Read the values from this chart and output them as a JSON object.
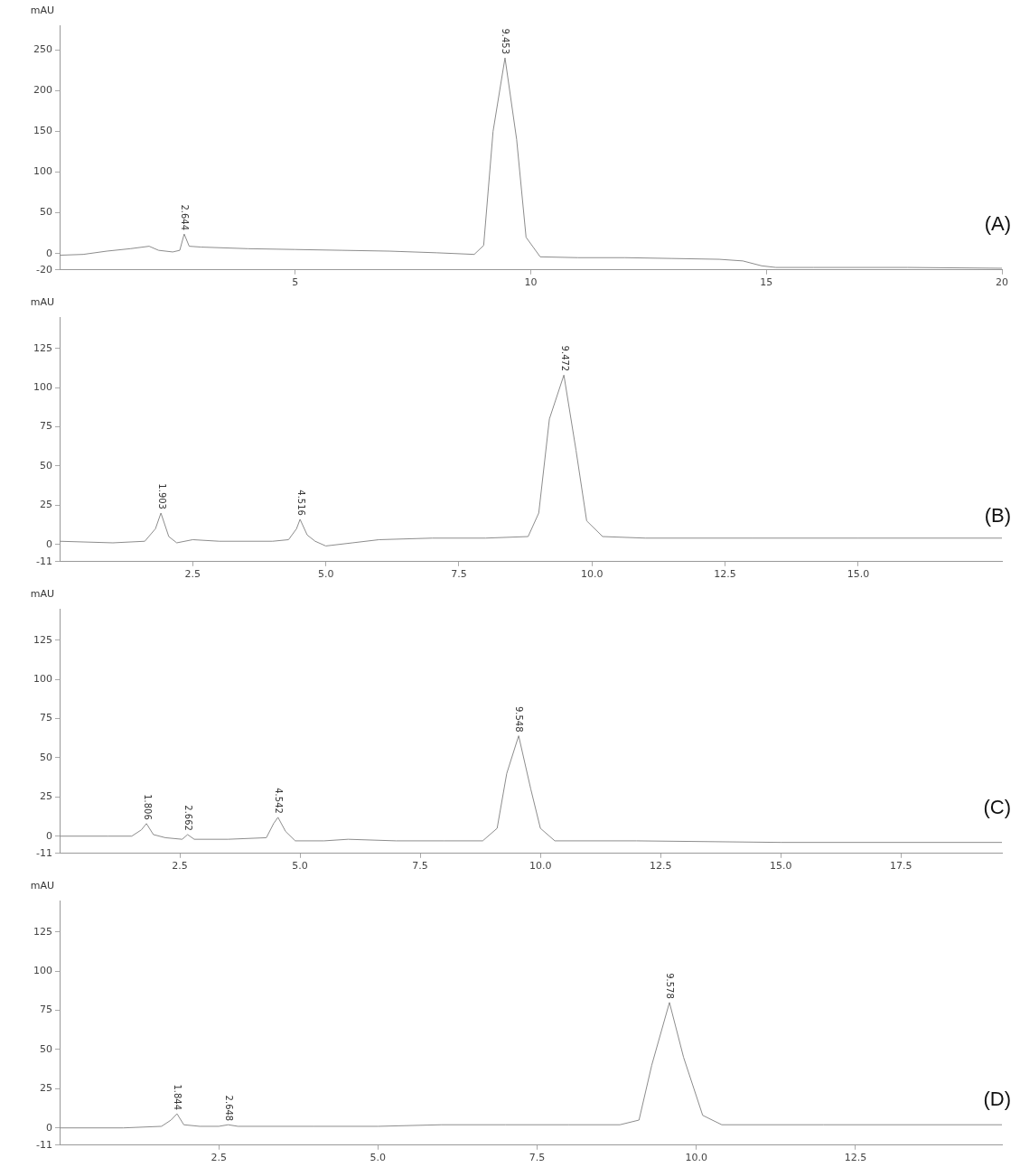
{
  "chart_data": [
    {
      "type": "line",
      "ylabel": "mAU",
      "color": "#8c8c8c",
      "xlim": [
        0,
        20
      ],
      "ylim": [
        -20,
        280
      ],
      "xticks": [
        5,
        10,
        15,
        20
      ],
      "yticks": [
        -20,
        0,
        50,
        100,
        150,
        200,
        250
      ],
      "x": [
        0,
        0.5,
        1,
        1.5,
        1.9,
        2.1,
        2.4,
        2.55,
        2.644,
        2.75,
        3,
        4,
        5,
        6,
        7,
        8,
        8.8,
        9.0,
        9.2,
        9.453,
        9.7,
        9.9,
        10.2,
        11,
        12,
        13,
        14,
        14.5,
        14.9,
        15.2,
        16,
        18,
        20
      ],
      "values": [
        -2,
        -1,
        3,
        6,
        9,
        4,
        2,
        4,
        24,
        9,
        8,
        6,
        5,
        4,
        3,
        1,
        -1,
        10,
        150,
        240,
        140,
        20,
        -4,
        -5,
        -5,
        -6,
        -7,
        -9,
        -15,
        -17,
        -17,
        -17,
        -18
      ],
      "annotations": [
        "(A)",
        {
          "text": "2.644",
          "x": 2.644,
          "y": 24
        },
        {
          "text": "9.453",
          "x": 9.453,
          "y": 240
        }
      ]
    },
    {
      "type": "line",
      "ylabel": "mAU",
      "color": "#8c8c8c",
      "xlim": [
        0,
        17.7
      ],
      "ylim": [
        -11,
        145
      ],
      "xticks": [
        {
          "value": 2.5,
          "label": "2.5"
        },
        {
          "value": 5,
          "label": "5.0"
        },
        {
          "value": 7.5,
          "label": "7.5"
        },
        {
          "value": 10,
          "label": "10.0"
        },
        {
          "value": 12.5,
          "label": "12.5"
        },
        {
          "value": 15,
          "label": "15.0"
        }
      ],
      "yticks": [
        -11,
        0,
        25,
        50,
        75,
        100,
        125
      ],
      "x": [
        0,
        1,
        1.6,
        1.8,
        1.903,
        2.05,
        2.2,
        2.5,
        3,
        4,
        4.3,
        4.45,
        4.516,
        4.65,
        4.8,
        5,
        5.5,
        6,
        7,
        8,
        8.8,
        9.0,
        9.2,
        9.472,
        9.7,
        9.9,
        10.2,
        11,
        13,
        15,
        17.7
      ],
      "values": [
        2,
        1,
        2,
        10,
        20,
        5,
        1,
        3,
        2,
        2,
        3,
        10,
        16,
        6,
        2,
        -1,
        1,
        3,
        4,
        4,
        5,
        20,
        80,
        108,
        60,
        15,
        5,
        4,
        4,
        4,
        4
      ],
      "annotations": [
        "(B)",
        {
          "text": "1.903",
          "x": 1.903,
          "y": 20
        },
        {
          "text": "4.516",
          "x": 4.516,
          "y": 16
        },
        {
          "text": "9.472",
          "x": 9.472,
          "y": 108
        }
      ]
    },
    {
      "type": "line",
      "ylabel": "mAU",
      "color": "#8c8c8c",
      "xlim": [
        0,
        19.6
      ],
      "ylim": [
        -11,
        145
      ],
      "xticks": [
        {
          "value": 2.5,
          "label": "2.5"
        },
        {
          "value": 5,
          "label": "5.0"
        },
        {
          "value": 7.5,
          "label": "7.5"
        },
        {
          "value": 10,
          "label": "10.0"
        },
        {
          "value": 12.5,
          "label": "12.5"
        },
        {
          "value": 15,
          "label": "15.0"
        },
        {
          "value": 17.5,
          "label": "17.5"
        }
      ],
      "yticks": [
        -11,
        0,
        25,
        50,
        75,
        100,
        125
      ],
      "x": [
        0,
        1,
        1.5,
        1.7,
        1.806,
        1.95,
        2.2,
        2.55,
        2.662,
        2.8,
        3.5,
        4.3,
        4.45,
        4.542,
        4.7,
        4.9,
        5.5,
        6,
        7,
        8,
        8.8,
        9.1,
        9.3,
        9.548,
        9.8,
        10,
        10.3,
        12,
        15,
        19.6
      ],
      "values": [
        0,
        0,
        0,
        4,
        8,
        1,
        -1,
        -2,
        1,
        -2,
        -2,
        -1,
        8,
        12,
        3,
        -3,
        -3,
        -2,
        -3,
        -3,
        -3,
        5,
        40,
        64,
        30,
        5,
        -3,
        -3,
        -4,
        -4
      ],
      "annotations": [
        "(C)",
        {
          "text": "1.806",
          "x": 1.806,
          "y": 8
        },
        {
          "text": "2.662",
          "x": 2.662,
          "y": 1
        },
        {
          "text": "4.542",
          "x": 4.542,
          "y": 12
        },
        {
          "text": "9.548",
          "x": 9.548,
          "y": 64
        }
      ]
    },
    {
      "type": "line",
      "ylabel": "mAU",
      "color": "#8c8c8c",
      "xlim": [
        0,
        14.8
      ],
      "ylim": [
        -11,
        145
      ],
      "xticks": [
        {
          "value": 2.5,
          "label": "2.5"
        },
        {
          "value": 5,
          "label": "5.0"
        },
        {
          "value": 7.5,
          "label": "7.5"
        },
        {
          "value": 10,
          "label": "10.0"
        },
        {
          "value": 12.5,
          "label": "12.5"
        }
      ],
      "yticks": [
        -11,
        0,
        25,
        50,
        75,
        100,
        125
      ],
      "x": [
        0,
        1,
        1.6,
        1.75,
        1.844,
        1.95,
        2.2,
        2.5,
        2.648,
        2.8,
        4,
        5,
        6,
        7,
        8,
        8.8,
        9.1,
        9.3,
        9.578,
        9.8,
        10.1,
        10.4,
        12,
        14.8
      ],
      "values": [
        0,
        0,
        1,
        5,
        9,
        2,
        1,
        1,
        2,
        1,
        1,
        1,
        2,
        2,
        2,
        2,
        5,
        40,
        80,
        45,
        8,
        2,
        2,
        2
      ],
      "annotations": [
        "(D)",
        {
          "text": "1.844",
          "x": 1.844,
          "y": 9
        },
        {
          "text": "2.648",
          "x": 2.648,
          "y": 2
        },
        {
          "text": "9.578",
          "x": 9.578,
          "y": 80
        }
      ]
    }
  ]
}
